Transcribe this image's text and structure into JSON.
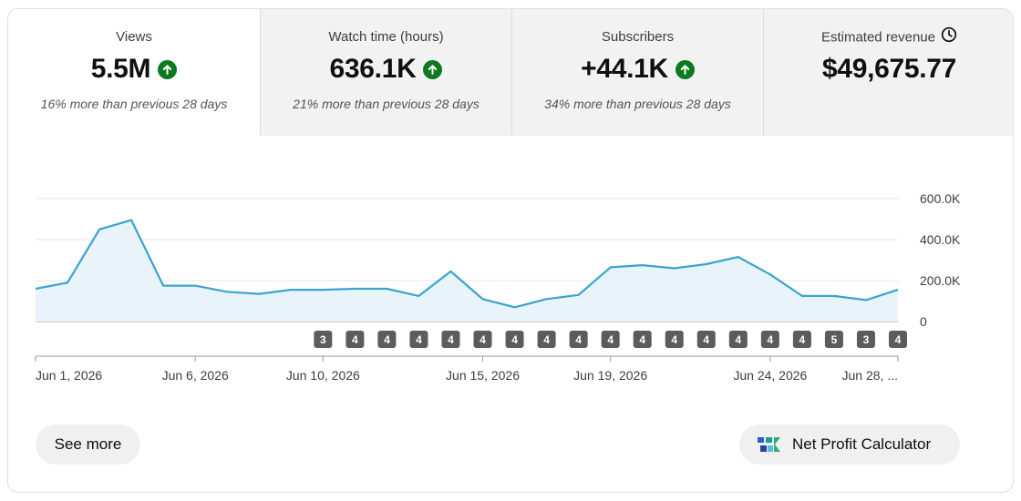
{
  "metrics": [
    {
      "label": "Views",
      "value": "5.5M",
      "trend": "up",
      "comparison": "16% more than previous 28 days"
    },
    {
      "label": "Watch time (hours)",
      "value": "636.1K",
      "trend": "up",
      "comparison": "21% more than previous 28 days"
    },
    {
      "label": "Subscribers",
      "value": "+44.1K",
      "trend": "up",
      "comparison": "34% more than previous 28 days"
    },
    {
      "label": "Estimated revenue",
      "value": "$49,675.77",
      "icon": "clock-icon"
    }
  ],
  "chart_data": {
    "type": "area",
    "series": [
      {
        "values": [
          160000,
          190000,
          450000,
          495000,
          175000,
          175000,
          145000,
          135000,
          155000,
          155000,
          160000,
          160000,
          125000,
          245000,
          110000,
          70000,
          110000,
          130000,
          265000,
          275000,
          260000,
          280000,
          315000,
          230000,
          125000,
          125000,
          105000,
          155000
        ]
      }
    ],
    "ylim": [
      0,
      600000
    ],
    "y_ticks": [
      "600.0K",
      "400.0K",
      "200.0K",
      "0"
    ],
    "x_tick_labels": [
      "Jun 1, 2026",
      "Jun 6, 2026",
      "Jun 10, 2026",
      "Jun 15, 2026",
      "Jun 19, 2026",
      "Jun 24, 2026",
      "Jun 28, ..."
    ],
    "markers": [
      "3",
      "4",
      "4",
      "4",
      "4",
      "4",
      "4",
      "4",
      "4",
      "4",
      "4",
      "4",
      "4",
      "4",
      "4",
      "4",
      "5",
      "3",
      "4"
    ],
    "line_color": "#3aa3cf",
    "fill_color": "#e8f4fa",
    "grid": true
  },
  "actions": {
    "see_more": "See more",
    "net_profit": "Net Profit Calculator"
  },
  "colors": {
    "trend_up": "#0d7a1f",
    "active_tab": "#ffffff",
    "inactive_tab": "#f2f2f2"
  }
}
